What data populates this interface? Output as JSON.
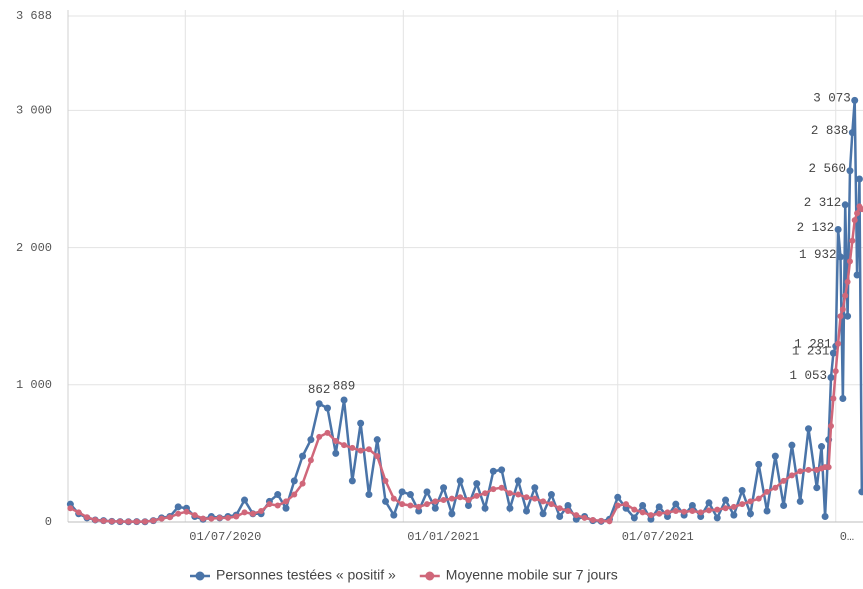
{
  "chart_data": {
    "type": "line",
    "x": [
      "26/03/2020",
      "02/04/2020",
      "09/04/2020",
      "16/04/2020",
      "23/04/2020",
      "30/04/2020",
      "07/05/2020",
      "14/05/2020",
      "21/05/2020",
      "28/05/2020",
      "04/06/2020",
      "11/06/2020",
      "18/06/2020",
      "25/06/2020",
      "02/07/2020",
      "09/07/2020",
      "16/07/2020",
      "23/07/2020",
      "30/07/2020",
      "06/08/2020",
      "13/08/2020",
      "20/08/2020",
      "27/08/2020",
      "03/09/2020",
      "10/09/2020",
      "17/09/2020",
      "24/09/2020",
      "01/10/2020",
      "08/10/2020",
      "15/10/2020",
      "22/10/2020",
      "29/10/2020",
      "05/11/2020",
      "12/11/2020",
      "19/11/2020",
      "26/11/2020",
      "03/12/2020",
      "10/12/2020",
      "17/12/2020",
      "24/12/2020",
      "31/12/2020",
      "07/01/2021",
      "14/01/2021",
      "21/01/2021",
      "28/01/2021",
      "04/02/2021",
      "11/02/2021",
      "18/02/2021",
      "25/02/2021",
      "04/03/2021",
      "11/03/2021",
      "18/03/2021",
      "25/03/2021",
      "01/04/2021",
      "08/04/2021",
      "15/04/2021",
      "22/04/2021",
      "29/04/2021",
      "06/05/2021",
      "13/05/2021",
      "20/05/2021",
      "27/05/2021",
      "03/06/2021",
      "10/06/2021",
      "17/06/2021",
      "24/06/2021",
      "01/07/2021",
      "08/07/2021",
      "15/07/2021",
      "22/07/2021",
      "29/07/2021",
      "05/08/2021",
      "12/08/2021",
      "19/08/2021",
      "26/08/2021",
      "02/09/2021",
      "09/09/2021",
      "16/09/2021",
      "23/09/2021",
      "30/09/2021",
      "07/10/2021",
      "14/10/2021",
      "21/10/2021",
      "28/10/2021",
      "04/11/2021",
      "11/11/2021",
      "18/11/2021",
      "25/11/2021",
      "02/12/2021",
      "09/12/2021",
      "16/12/2021",
      "20/12/2021",
      "23/12/2021",
      "26/12/2021",
      "28/12/2021",
      "30/12/2021",
      "01/01/2022",
      "03/01/2022",
      "05/01/2022",
      "07/01/2022",
      "09/01/2022",
      "11/01/2022",
      "13/01/2022",
      "15/01/2022",
      "17/01/2022",
      "19/01/2022",
      "21/01/2022",
      "23/01/2022"
    ],
    "series": [
      {
        "name": "Personnes testées « positif »",
        "color": "#4a74a8",
        "values": [
          130,
          60,
          30,
          15,
          10,
          5,
          3,
          2,
          3,
          2,
          10,
          30,
          40,
          110,
          100,
          40,
          20,
          40,
          30,
          40,
          50,
          160,
          60,
          60,
          150,
          200,
          100,
          300,
          480,
          600,
          862,
          830,
          500,
          889,
          300,
          720,
          200,
          600,
          150,
          50,
          220,
          200,
          80,
          220,
          100,
          250,
          60,
          300,
          120,
          280,
          100,
          370,
          380,
          100,
          300,
          80,
          250,
          60,
          200,
          40,
          120,
          20,
          40,
          10,
          5,
          20,
          180,
          100,
          30,
          120,
          20,
          110,
          40,
          130,
          50,
          120,
          40,
          140,
          30,
          160,
          50,
          230,
          60,
          420,
          80,
          480,
          120,
          560,
          150,
          680,
          250,
          550,
          40,
          600,
          1053,
          1231,
          1281,
          2132,
          1932,
          900,
          2312,
          1500,
          2560,
          2838,
          3073,
          1800,
          2500,
          220
        ],
        "value_labels": [
          null,
          null,
          null,
          null,
          null,
          null,
          null,
          null,
          null,
          null,
          null,
          null,
          null,
          null,
          null,
          null,
          null,
          null,
          null,
          null,
          null,
          null,
          null,
          null,
          null,
          null,
          null,
          null,
          null,
          null,
          "862",
          null,
          null,
          "889",
          null,
          null,
          null,
          null,
          null,
          null,
          null,
          null,
          null,
          null,
          null,
          null,
          null,
          null,
          null,
          null,
          null,
          null,
          null,
          null,
          null,
          null,
          null,
          null,
          null,
          null,
          null,
          null,
          null,
          null,
          null,
          null,
          null,
          null,
          null,
          null,
          null,
          null,
          null,
          null,
          null,
          null,
          null,
          null,
          null,
          null,
          null,
          null,
          null,
          null,
          null,
          null,
          null,
          null,
          null,
          null,
          null,
          null,
          null,
          null,
          "1 053",
          "1 231",
          "1 281",
          "2 132",
          "1 932",
          null,
          "2 312",
          null,
          "2 560",
          "2 838",
          "3 073",
          null,
          null,
          null
        ]
      },
      {
        "name": "Moyenne mobile sur 7 jours",
        "color": "#d0677a",
        "values": [
          100,
          70,
          35,
          15,
          8,
          5,
          4,
          3,
          3,
          3,
          10,
          25,
          35,
          60,
          75,
          50,
          25,
          25,
          30,
          30,
          40,
          70,
          60,
          80,
          130,
          120,
          150,
          200,
          280,
          450,
          620,
          650,
          590,
          560,
          540,
          520,
          530,
          480,
          300,
          170,
          130,
          120,
          110,
          130,
          150,
          160,
          170,
          180,
          160,
          190,
          210,
          240,
          250,
          210,
          200,
          180,
          170,
          150,
          130,
          100,
          80,
          50,
          30,
          15,
          8,
          5,
          120,
          130,
          90,
          70,
          50,
          60,
          70,
          80,
          75,
          80,
          70,
          85,
          90,
          100,
          110,
          130,
          150,
          170,
          220,
          250,
          300,
          340,
          370,
          380,
          380,
          390,
          400,
          400,
          700,
          900,
          1100,
          1300,
          1500,
          1550,
          1650,
          1750,
          1900,
          2050,
          2200,
          2250,
          2300,
          2280
        ]
      }
    ],
    "xlim": [
      "24/03/2020",
      "24/01/2022"
    ],
    "xticks": [
      "01/07/2020",
      "01/01/2021",
      "01/07/2021",
      {
        "value": "01/01/2022",
        "label": "0…"
      }
    ],
    "ylim": [
      0,
      3688
    ],
    "yticks": [
      0,
      {
        "value": 1000,
        "label": "1 000"
      },
      {
        "value": 2000,
        "label": "2 000"
      },
      {
        "value": 3000,
        "label": "3 000"
      },
      {
        "value": 3688,
        "label": "3 688"
      }
    ],
    "grid": true,
    "legend": "bottom"
  }
}
